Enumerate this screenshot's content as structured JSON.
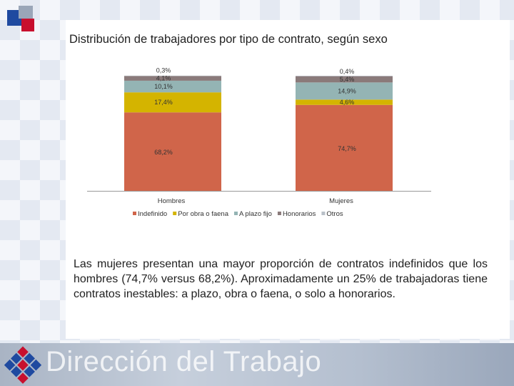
{
  "slide": {
    "title": "Distribución de trabajadores por tipo de contrato, según sexo",
    "body": "Las mujeres presentan una mayor proporción de contratos indefinidos que los hombres (74,7% versus 68,2%). Aproximadamente un 25% de trabajadoras tiene contratos inestables: a plazo, obra o faena, o solo a honorarios.",
    "footer_brand": "Dirección del Trabajo"
  },
  "colors": {
    "indefinido": "#d0654a",
    "obra": "#d4b400",
    "plazo": "#94b4b4",
    "honorarios": "#8a7a7a",
    "otros": "#b9c0c8",
    "logo_blue": "#1f4aa0",
    "logo_red": "#c8102e"
  },
  "chart_data": {
    "type": "bar",
    "stacked": true,
    "percent": true,
    "categories": [
      "Hombres",
      "Mujeres"
    ],
    "ylim": [
      0,
      100
    ],
    "legend_position": "bottom",
    "series": [
      {
        "name": "Indefinido",
        "values": [
          68.2,
          74.7
        ],
        "labels": [
          "68,2%",
          "74,7%"
        ]
      },
      {
        "name": "Por obra o faena",
        "values": [
          17.4,
          4.6
        ],
        "labels": [
          "17,4%",
          "4,6%"
        ]
      },
      {
        "name": "A plazo fijo",
        "values": [
          10.1,
          14.9
        ],
        "labels": [
          "10,1%",
          "14,9%"
        ]
      },
      {
        "name": "Honorarios",
        "values": [
          4.1,
          5.4
        ],
        "labels": [
          "4,1%",
          "5,4%"
        ]
      },
      {
        "name": "Otros",
        "values": [
          0.3,
          0.4
        ],
        "labels": [
          "0,3%",
          "0,4%"
        ]
      }
    ]
  }
}
